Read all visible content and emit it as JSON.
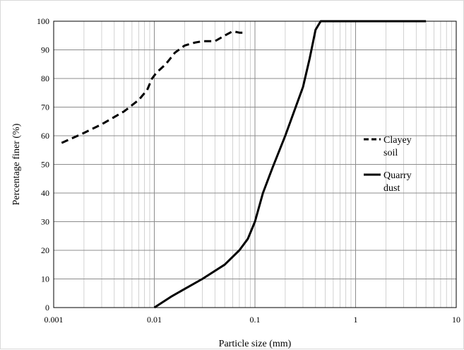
{
  "chart_data": {
    "type": "line",
    "xlabel": "Particle size (mm)",
    "ylabel": "Percentage finer (%)",
    "x_scale": "log",
    "xlim": [
      0.001,
      10
    ],
    "ylim": [
      0,
      100
    ],
    "x_ticks": [
      0.001,
      0.01,
      0.1,
      1,
      10
    ],
    "x_tick_labels": [
      "0.001",
      "0.01",
      "0.1",
      "1",
      "10"
    ],
    "y_ticks": [
      0,
      10,
      20,
      30,
      40,
      50,
      60,
      70,
      80,
      90,
      100
    ],
    "y_tick_labels": [
      "0",
      "10",
      "20",
      "30",
      "40",
      "50",
      "60",
      "70",
      "80",
      "90",
      "100"
    ],
    "grid": true,
    "legend_position": "right",
    "series": [
      {
        "name_lines": [
          "Clayey",
          "soil"
        ],
        "line_style": "dashed",
        "color": "#000000",
        "x": [
          0.0012,
          0.002,
          0.003,
          0.005,
          0.007,
          0.0085,
          0.0095,
          0.0105,
          0.013,
          0.016,
          0.02,
          0.025,
          0.03,
          0.04,
          0.05,
          0.06,
          0.07,
          0.08
        ],
        "y": [
          57.5,
          61,
          64,
          68.5,
          72.5,
          76,
          80,
          82,
          85,
          89,
          91.5,
          92.5,
          93,
          93,
          95,
          96.5,
          96,
          96
        ]
      },
      {
        "name_lines": [
          "Quarry",
          "dust"
        ],
        "line_style": "solid",
        "color": "#000000",
        "x": [
          0.01,
          0.015,
          0.02,
          0.03,
          0.05,
          0.07,
          0.085,
          0.1,
          0.12,
          0.15,
          0.2,
          0.3,
          0.35,
          0.4,
          0.45,
          0.5,
          0.6,
          1,
          2,
          3,
          5
        ],
        "y": [
          0,
          4,
          6.5,
          10,
          15,
          20,
          24,
          30,
          40,
          49,
          60,
          77,
          87,
          97,
          100,
          100,
          100,
          100,
          100,
          100,
          100
        ]
      }
    ]
  }
}
